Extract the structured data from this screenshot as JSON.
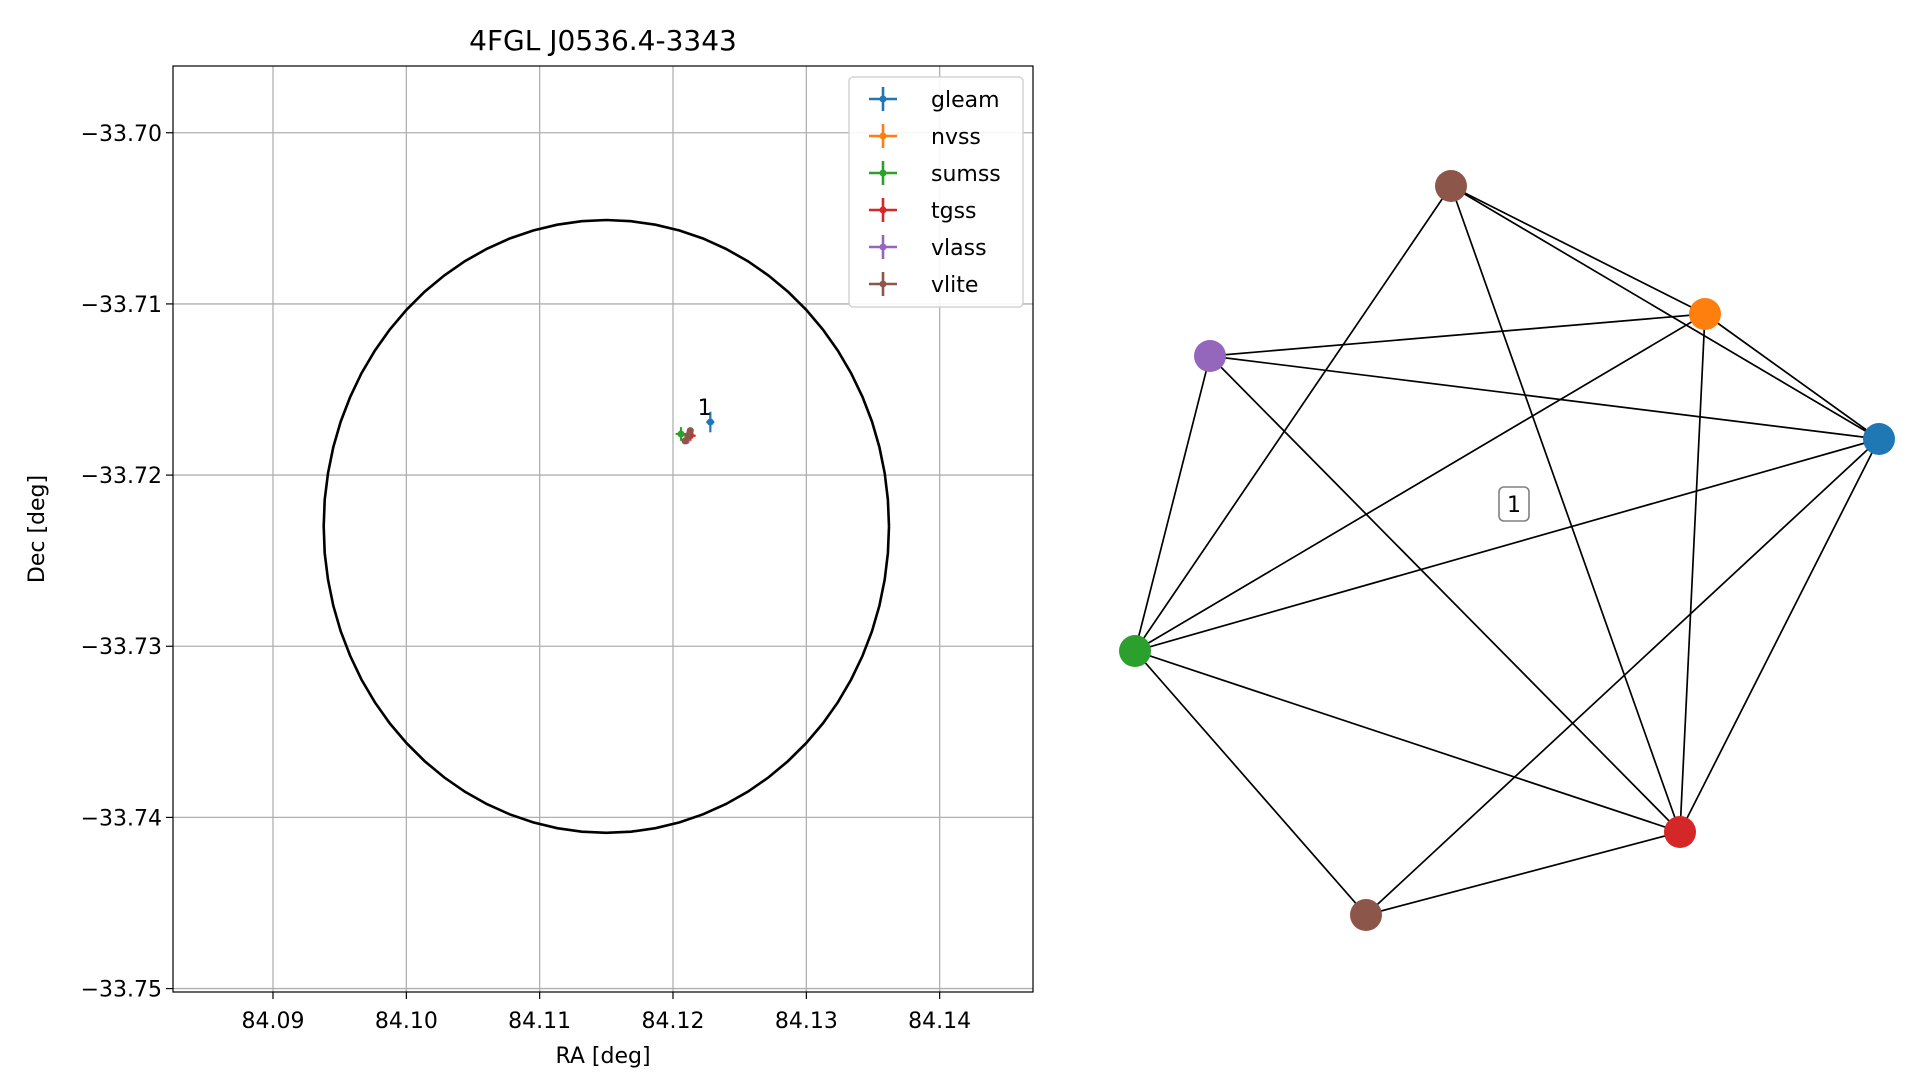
{
  "chart_data": [
    {
      "type": "scatter",
      "title": "4FGL J0536.4-3343",
      "xlabel": "RA [deg]",
      "ylabel": "Dec [deg]",
      "xlim": [
        84.0825,
        84.147
      ],
      "ylim": [
        -33.7502,
        -33.6961
      ],
      "grid": true,
      "x_ticks": [
        84.09,
        84.1,
        84.11,
        84.12,
        84.13,
        84.14
      ],
      "x_tick_labels": [
        "84.09",
        "84.10",
        "84.11",
        "84.12",
        "84.13",
        "84.14"
      ],
      "y_ticks": [
        -33.7,
        -33.71,
        -33.72,
        -33.73,
        -33.74,
        -33.75
      ],
      "y_tick_labels": [
        "−33.70",
        "−33.71",
        "−33.72",
        "−33.73",
        "−33.74",
        "−33.75"
      ],
      "ellipse": {
        "center": [
          84.115,
          -33.723
        ],
        "ra_radius": 0.0212,
        "dec_radius": 0.0179,
        "color": "#000000"
      },
      "legend_position": "top-right",
      "series": [
        {
          "name": "gleam",
          "color": "#1f77b4",
          "x": 84.1228,
          "y": -33.7169,
          "xerr": 0.0003,
          "yerr": 0.0006
        },
        {
          "name": "nvss",
          "color": "#ff7f0e",
          "x": 84.1213,
          "y": -33.7176,
          "xerr": 0.0002,
          "yerr": 0.0002
        },
        {
          "name": "sumss",
          "color": "#2ca02c",
          "x": 84.1206,
          "y": -33.7176,
          "xerr": 0.0004,
          "yerr": 0.0004
        },
        {
          "name": "tgss",
          "color": "#d62728",
          "x": 84.1213,
          "y": -33.7177,
          "xerr": 0.0004,
          "yerr": 0.0003
        },
        {
          "name": "vlass",
          "color": "#9467bd",
          "x": 84.121,
          "y": -33.718,
          "xerr": 0.0001,
          "yerr": 0.0001
        },
        {
          "name": "vlite",
          "color": "#8c564b",
          "x": 84.1211,
          "y": -33.7177,
          "xerr": 0.0002,
          "yerr": 0.0003
        }
      ],
      "extra_points": [
        {
          "color": "#8c564b",
          "x": 84.1209,
          "y": -33.718
        },
        {
          "color": "#8c564b",
          "x": 84.1213,
          "y": -33.7174
        }
      ],
      "annotations": [
        {
          "text": "1",
          "x": 84.1223,
          "y": -33.7163
        }
      ]
    },
    {
      "type": "graph",
      "nodes": [
        {
          "id": "brown-top",
          "color": "#8c564b"
        },
        {
          "id": "orange",
          "color": "#ff7f0e"
        },
        {
          "id": "purple",
          "color": "#9467bd"
        },
        {
          "id": "blue",
          "color": "#1f77b4"
        },
        {
          "id": "green",
          "color": "#2ca02c"
        },
        {
          "id": "red",
          "color": "#d62728"
        },
        {
          "id": "brown-bottom",
          "color": "#8c564b"
        }
      ],
      "edges": [
        [
          "brown-top",
          "orange"
        ],
        [
          "brown-top",
          "blue"
        ],
        [
          "brown-top",
          "green"
        ],
        [
          "brown-top",
          "red"
        ],
        [
          "orange",
          "purple"
        ],
        [
          "orange",
          "blue"
        ],
        [
          "orange",
          "green"
        ],
        [
          "orange",
          "red"
        ],
        [
          "purple",
          "blue"
        ],
        [
          "purple",
          "green"
        ],
        [
          "purple",
          "red"
        ],
        [
          "blue",
          "green"
        ],
        [
          "blue",
          "red"
        ],
        [
          "blue",
          "brown-bottom"
        ],
        [
          "green",
          "red"
        ],
        [
          "green",
          "brown-bottom"
        ],
        [
          "red",
          "brown-bottom"
        ]
      ],
      "label": "1"
    }
  ]
}
